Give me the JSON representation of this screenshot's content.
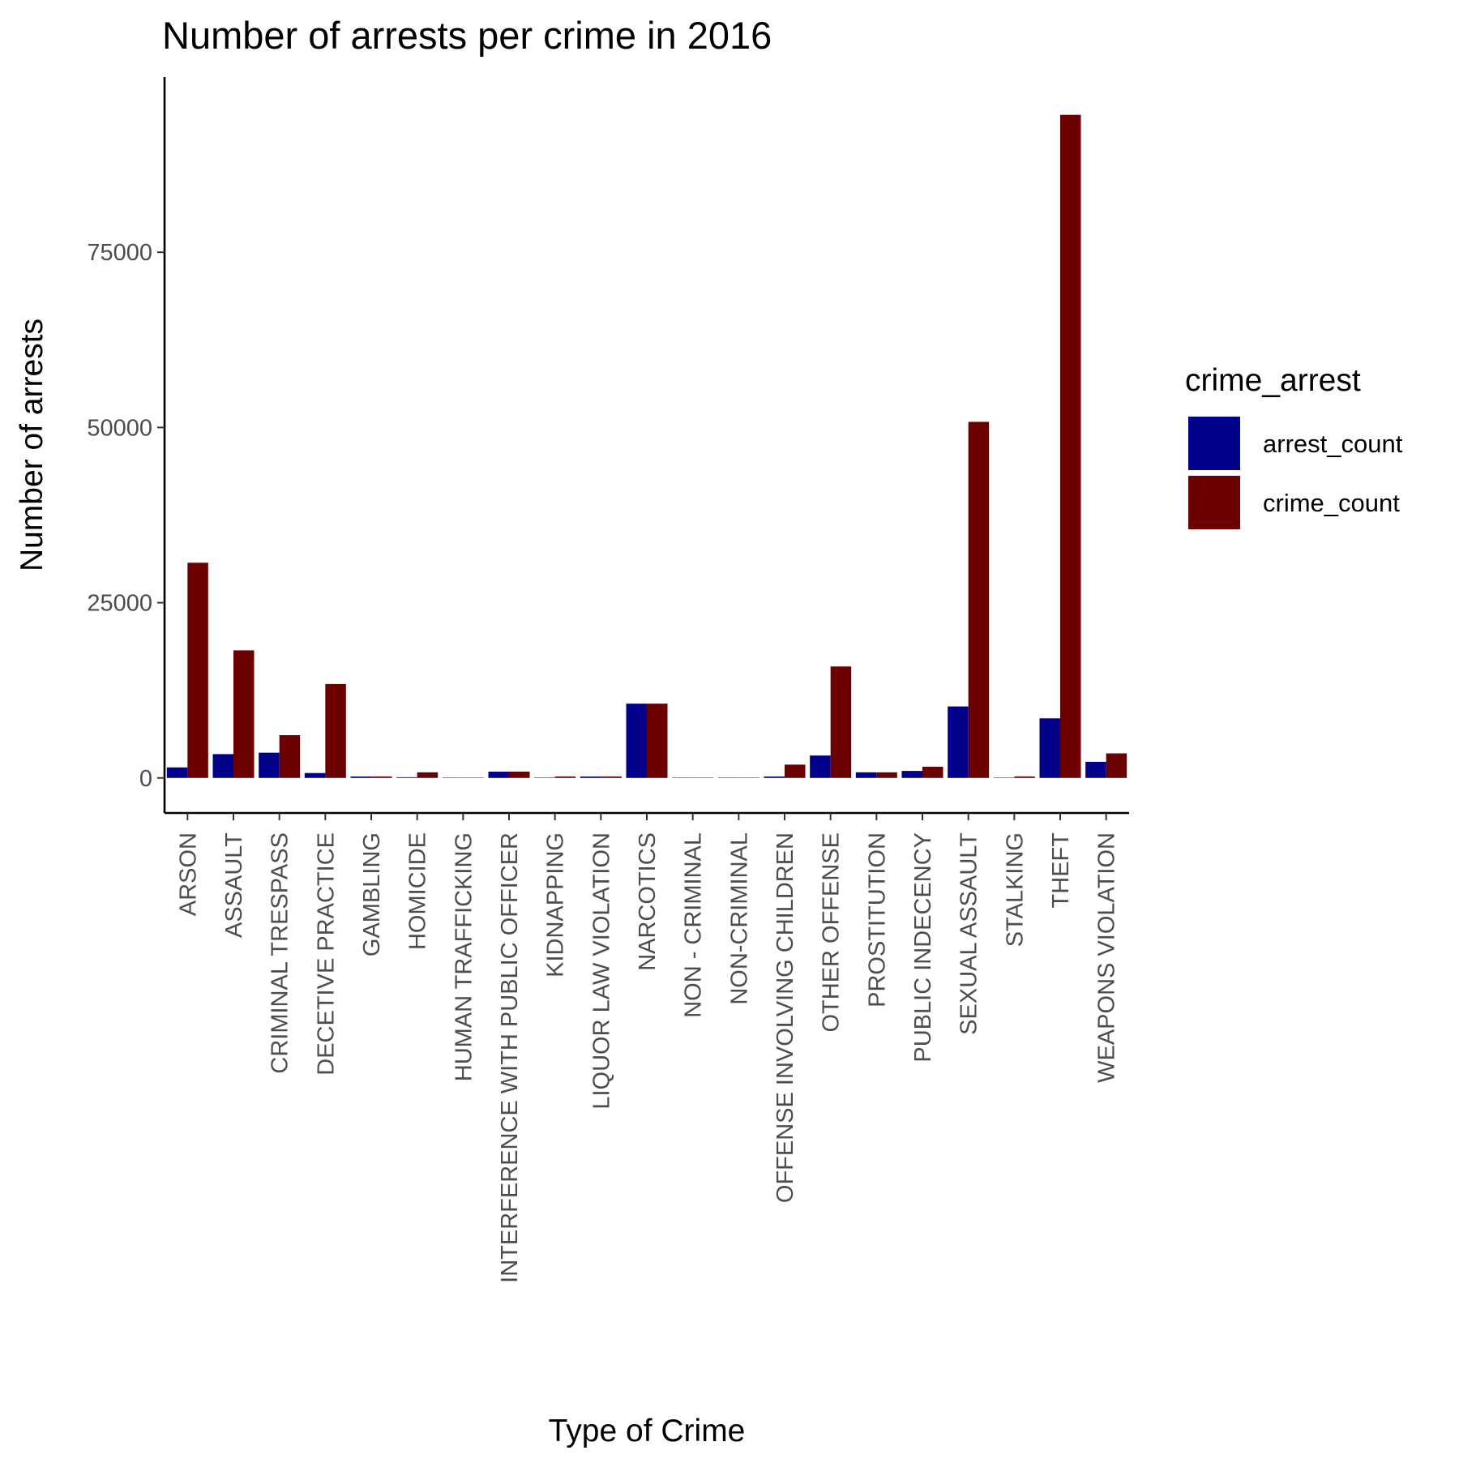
{
  "chart_data": {
    "type": "bar",
    "title": "Number of arrests per crime in  2016",
    "xlabel": "Type of Crime",
    "ylabel": "Number of arrests",
    "ylim": [
      -5000,
      100000
    ],
    "yticks": [
      0,
      25000,
      50000,
      75000
    ],
    "ytick_labels": [
      "0",
      "25000",
      "50000",
      "75000"
    ],
    "grid": false,
    "legend_title": "crime_arrest",
    "legend_position": "right",
    "categories": [
      "ARSON",
      "ASSAULT",
      "CRIMINAL TRESPASS",
      "DECETIVE PRACTICE",
      "GAMBLING",
      "HOMICIDE",
      "HUMAN TRAFFICKING",
      "INTERFERENCE WITH PUBLIC OFFICER",
      "KIDNAPPING",
      "LIQUOR LAW VIOLATION",
      "NARCOTICS",
      "NON - CRIMINAL",
      "NON-CRIMINAL",
      "OFFENSE INVOLVING CHILDREN",
      "OTHER OFFENSE",
      "PROSTITUTION",
      "PUBLIC INDECENCY",
      "SEXUAL ASSAULT",
      "STALKING",
      "THEFT",
      "WEAPONS VIOLATION"
    ],
    "series": [
      {
        "name": "arrest_count",
        "color": "#00008B",
        "values": [
          1500,
          3400,
          3600,
          700,
          200,
          100,
          10,
          900,
          60,
          200,
          10600,
          5,
          5,
          200,
          3200,
          800,
          1000,
          10200,
          50,
          8500,
          2300
        ]
      },
      {
        "name": "crime_count",
        "color": "#6B0000",
        "values": [
          30700,
          18200,
          6100,
          13400,
          200,
          800,
          20,
          900,
          200,
          200,
          10600,
          5,
          30,
          1900,
          15900,
          800,
          1600,
          50800,
          200,
          94600,
          3500
        ]
      }
    ]
  }
}
